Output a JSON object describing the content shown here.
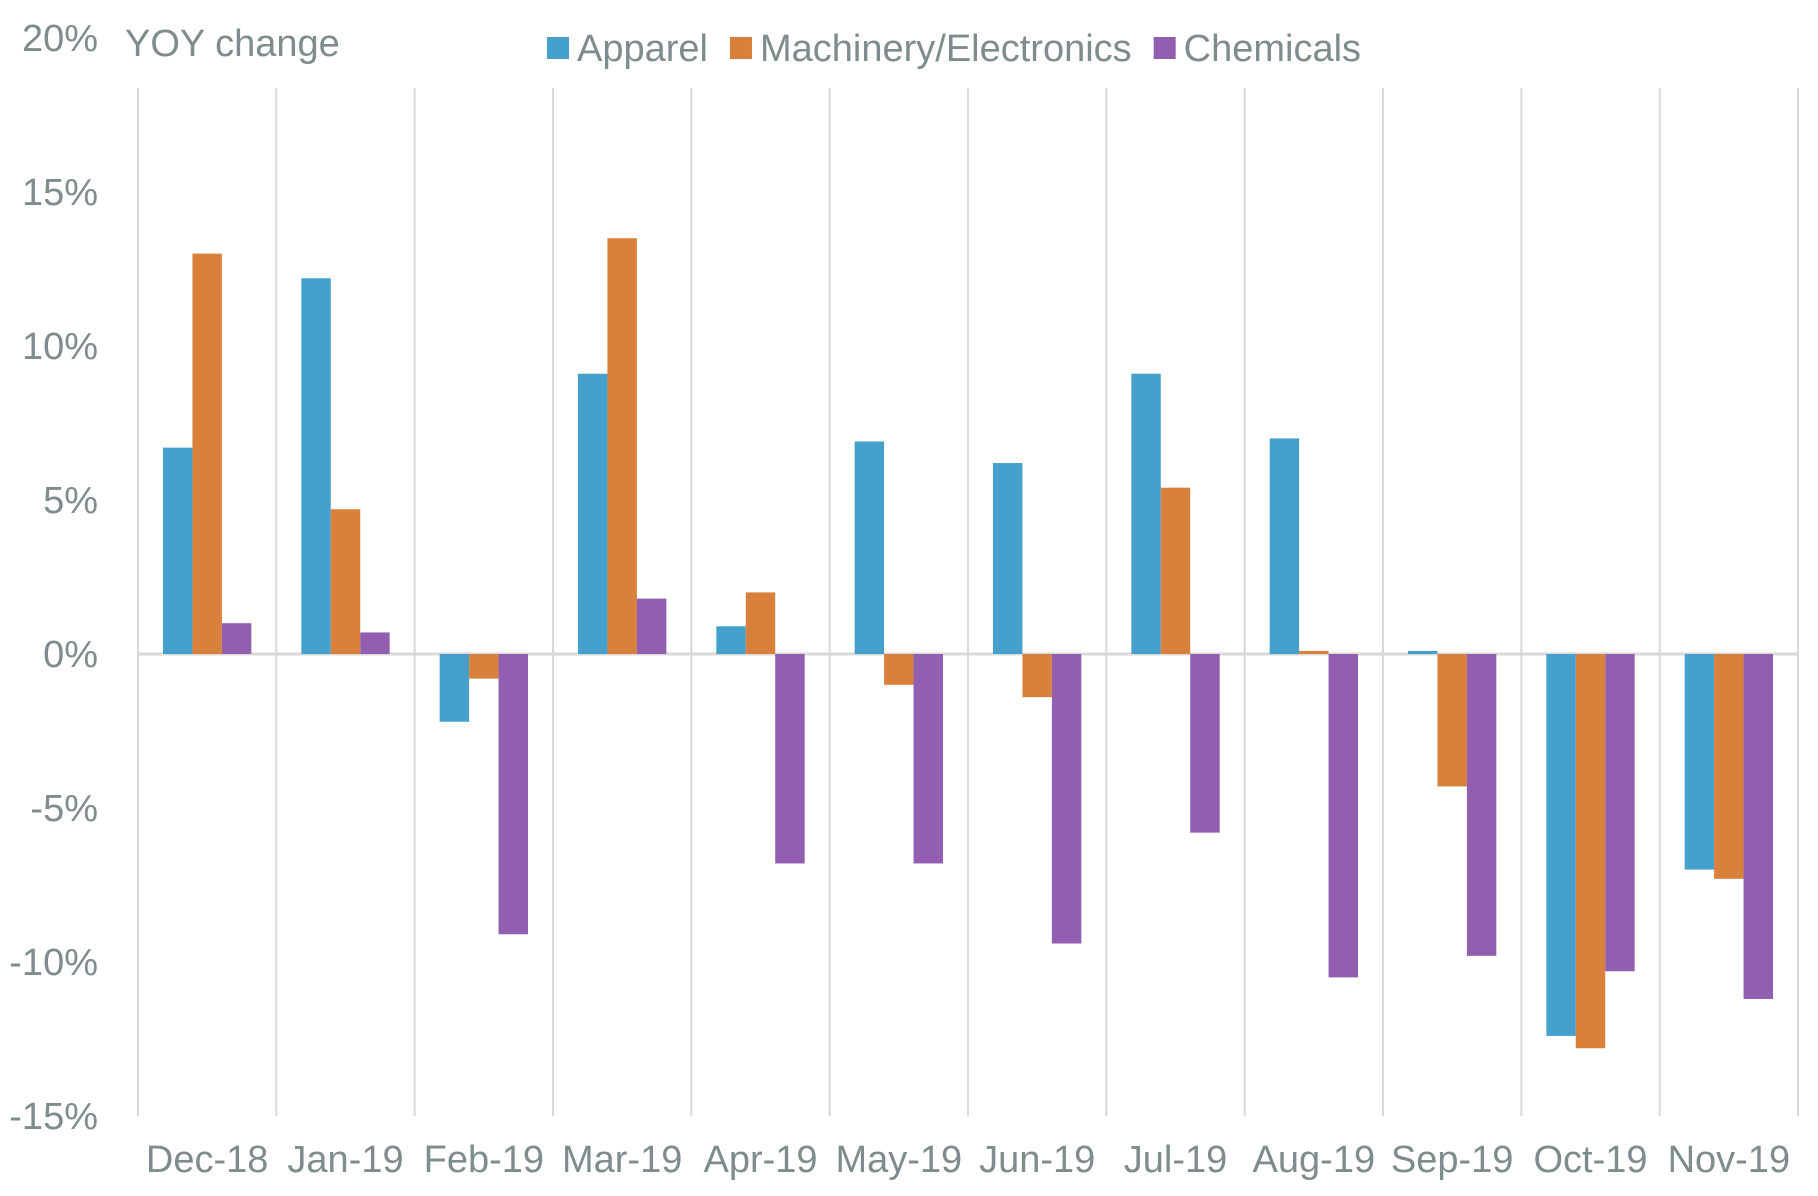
{
  "chart_data": {
    "type": "bar",
    "title": "",
    "ylabel": "YOY change",
    "xlabel": "",
    "ylim": [
      -15,
      20
    ],
    "yticks": [
      20,
      15,
      10,
      5,
      0,
      -5,
      -10,
      -15
    ],
    "ytick_labels": [
      "20%",
      "15%",
      "10%",
      "5%",
      "0%",
      "-5%",
      "-10%",
      "-15%"
    ],
    "grid": "vertical category separators",
    "legend_position": "top-center",
    "categories": [
      "Dec-18",
      "Jan-19",
      "Feb-19",
      "Mar-19",
      "Apr-19",
      "May-19",
      "Jun-19",
      "Jul-19",
      "Aug-19",
      "Sep-19",
      "Oct-19",
      "Nov-19"
    ],
    "series": [
      {
        "name": "Apparel",
        "color": "#45a0cc",
        "values": [
          6.7,
          12.2,
          -2.2,
          9.1,
          0.9,
          6.9,
          6.2,
          9.1,
          7.0,
          0.1,
          -12.4,
          -7.0
        ]
      },
      {
        "name": "Machinery/Electronics",
        "color": "#d9813c",
        "values": [
          13.0,
          4.7,
          -0.8,
          13.5,
          2.0,
          -1.0,
          -1.4,
          5.4,
          0.1,
          -4.3,
          -12.8,
          -7.3
        ]
      },
      {
        "name": "Chemicals",
        "color": "#925fb0",
        "values": [
          1.0,
          0.7,
          -9.1,
          1.8,
          -6.8,
          -6.8,
          -9.4,
          -5.8,
          -10.5,
          -9.8,
          -10.3,
          -11.2
        ]
      }
    ]
  }
}
